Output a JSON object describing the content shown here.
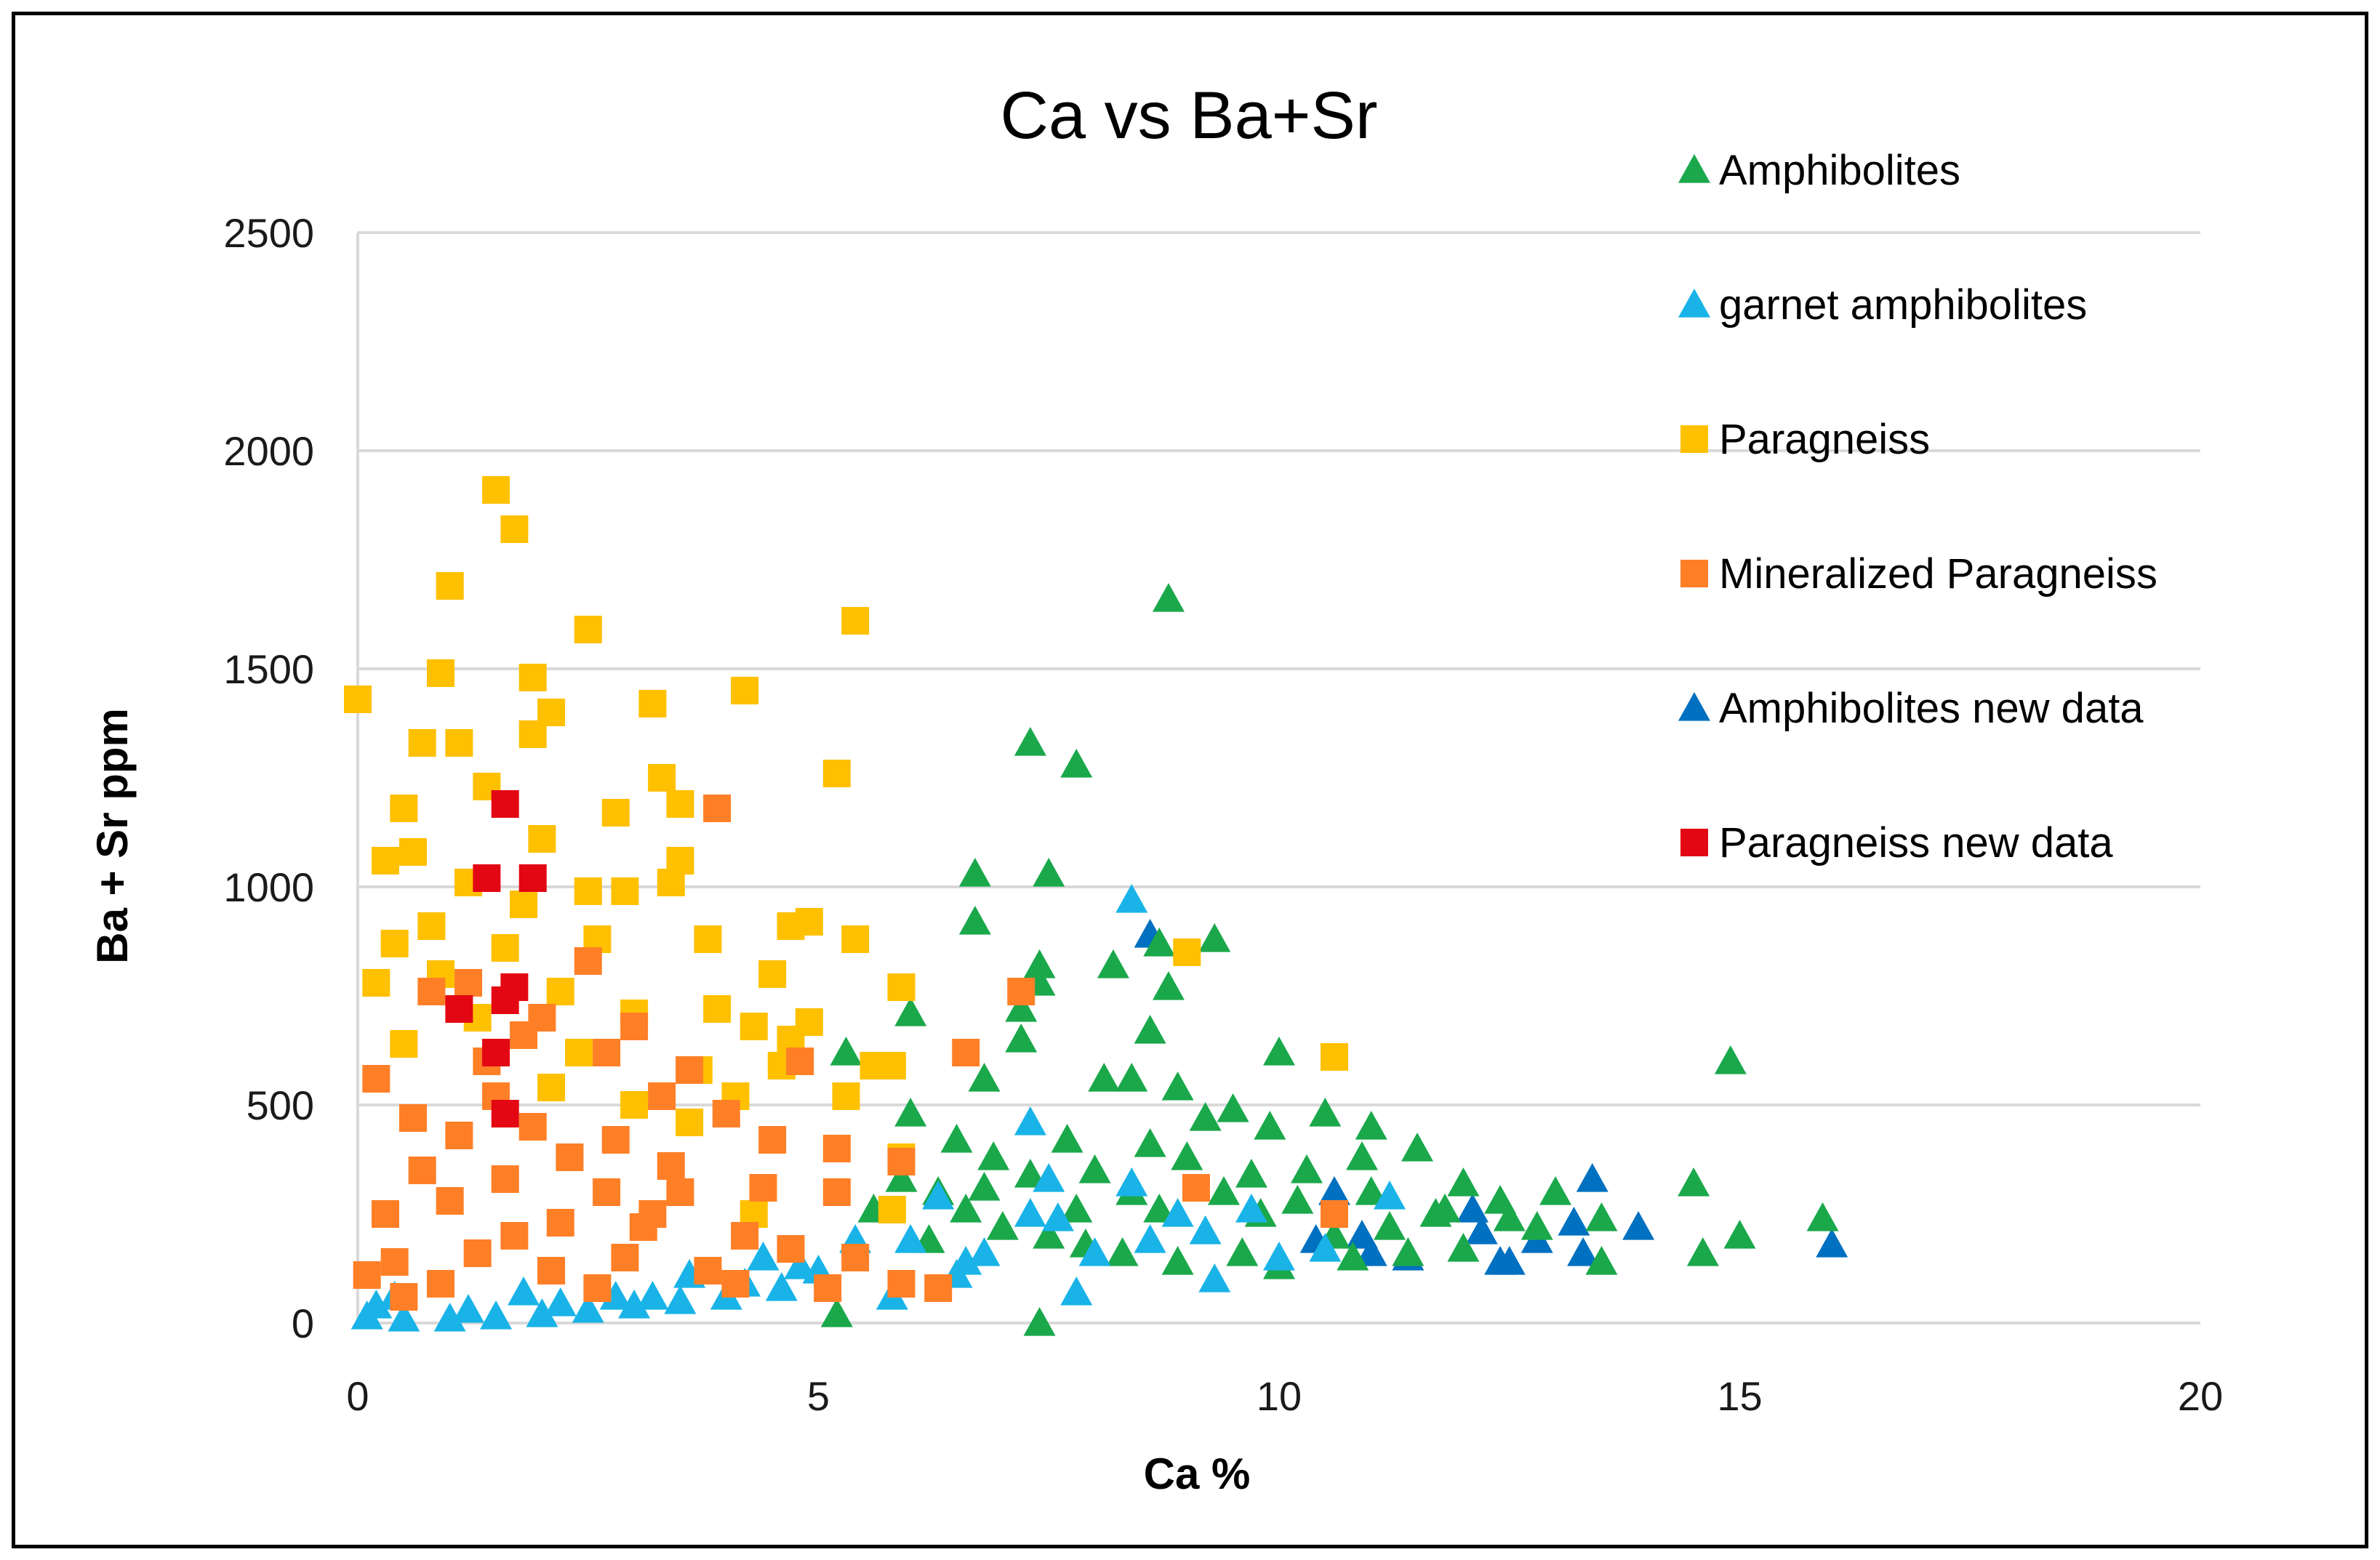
{
  "chart_data": {
    "type": "scatter",
    "title": "Ca vs Ba+Sr",
    "xlabel": "Ca %",
    "ylabel": "Ba + Sr ppm",
    "xlim": [
      0,
      20
    ],
    "ylim": [
      0,
      2500
    ],
    "x_ticks": [
      "0",
      "5",
      "10",
      "15",
      "20"
    ],
    "y_ticks": [
      "0",
      "500",
      "1000",
      "1500",
      "2000",
      "2500"
    ],
    "grid": "horizontal",
    "legend_position": "top-right",
    "series": [
      {
        "name": "Amphibolites",
        "marker": "triangle",
        "color": "#1aa84b",
        "points": [
          [
            8.8,
            1660
          ],
          [
            7.3,
            1330
          ],
          [
            7.8,
            1280
          ],
          [
            6.7,
            1030
          ],
          [
            7.5,
            1030
          ],
          [
            6.7,
            920
          ],
          [
            7.4,
            820
          ],
          [
            8.2,
            820
          ],
          [
            8.7,
            870
          ],
          [
            9.3,
            880
          ],
          [
            7.2,
            720
          ],
          [
            7.4,
            780
          ],
          [
            6.0,
            710
          ],
          [
            8.8,
            770
          ],
          [
            8.6,
            670
          ],
          [
            7.2,
            650
          ],
          [
            10.0,
            620
          ],
          [
            14.9,
            600
          ],
          [
            5.3,
            620
          ],
          [
            6.8,
            560
          ],
          [
            8.1,
            560
          ],
          [
            8.4,
            560
          ],
          [
            8.9,
            540
          ],
          [
            9.9,
            450
          ],
          [
            10.5,
            480
          ],
          [
            11.0,
            450
          ],
          [
            11.5,
            400
          ],
          [
            10.9,
            380
          ],
          [
            9.5,
            490
          ],
          [
            12.0,
            320
          ],
          [
            12.4,
            280
          ],
          [
            13.0,
            300
          ],
          [
            12.5,
            240
          ],
          [
            13.5,
            240
          ],
          [
            14.5,
            320
          ],
          [
            15.0,
            200
          ],
          [
            14.6,
            160
          ],
          [
            15.9,
            240
          ],
          [
            13.5,
            140
          ],
          [
            12.0,
            170
          ],
          [
            7.4,
            0
          ],
          [
            5.2,
            20
          ],
          [
            6.0,
            480
          ],
          [
            6.5,
            420
          ],
          [
            6.9,
            380
          ],
          [
            7.7,
            420
          ],
          [
            8.0,
            350
          ],
          [
            8.4,
            300
          ],
          [
            8.7,
            260
          ],
          [
            9.0,
            380
          ],
          [
            9.4,
            300
          ],
          [
            9.8,
            250
          ],
          [
            10.2,
            280
          ],
          [
            10.6,
            200
          ],
          [
            11.2,
            220
          ],
          [
            11.7,
            250
          ],
          [
            6.3,
            300
          ],
          [
            6.6,
            260
          ],
          [
            7.0,
            220
          ],
          [
            7.5,
            200
          ],
          [
            7.9,
            180
          ],
          [
            8.3,
            160
          ],
          [
            8.9,
            140
          ],
          [
            9.6,
            160
          ],
          [
            10.0,
            130
          ],
          [
            10.8,
            150
          ],
          [
            11.4,
            160
          ],
          [
            5.6,
            260
          ],
          [
            5.9,
            330
          ],
          [
            6.2,
            190
          ],
          [
            6.8,
            310
          ],
          [
            7.3,
            340
          ],
          [
            7.8,
            260
          ],
          [
            8.6,
            410
          ],
          [
            9.2,
            470
          ],
          [
            9.7,
            340
          ],
          [
            10.3,
            350
          ],
          [
            11.0,
            300
          ],
          [
            11.8,
            260
          ],
          [
            12.8,
            220
          ]
        ]
      },
      {
        "name": "garnet amphibolites",
        "marker": "triangle",
        "color": "#19b3e8",
        "points": [
          [
            8.4,
            970
          ],
          [
            7.3,
            460
          ],
          [
            8.4,
            320
          ],
          [
            7.5,
            330
          ],
          [
            7.3,
            250
          ],
          [
            7.6,
            240
          ],
          [
            6.8,
            160
          ],
          [
            7.8,
            70
          ],
          [
            6.5,
            110
          ],
          [
            8.9,
            250
          ],
          [
            9.2,
            210
          ],
          [
            9.3,
            100
          ],
          [
            10.0,
            150
          ],
          [
            10.5,
            170
          ],
          [
            11.2,
            290
          ],
          [
            5.4,
            190
          ],
          [
            5.0,
            120
          ],
          [
            4.6,
            80
          ],
          [
            4.0,
            60
          ],
          [
            3.5,
            50
          ],
          [
            3.0,
            40
          ],
          [
            2.5,
            30
          ],
          [
            2.0,
            20
          ],
          [
            1.5,
            15
          ],
          [
            1.0,
            10
          ],
          [
            0.5,
            10
          ],
          [
            0.1,
            15
          ],
          [
            0.2,
            40
          ],
          [
            1.2,
            30
          ],
          [
            2.2,
            45
          ],
          [
            3.2,
            60
          ],
          [
            4.2,
            90
          ],
          [
            4.8,
            130
          ],
          [
            5.8,
            60
          ],
          [
            6.0,
            190
          ],
          [
            6.3,
            290
          ],
          [
            6.6,
            140
          ],
          [
            8.0,
            160
          ],
          [
            8.6,
            190
          ],
          [
            9.7,
            260
          ],
          [
            0.4,
            60
          ],
          [
            1.8,
            70
          ],
          [
            2.8,
            60
          ],
          [
            3.6,
            110
          ],
          [
            4.4,
            150
          ]
        ]
      },
      {
        "name": "Paragneiss",
        "marker": "square",
        "color": "#ffc000",
        "points": [
          [
            1.5,
            1910
          ],
          [
            1.7,
            1820
          ],
          [
            1.0,
            1690
          ],
          [
            5.4,
            1610
          ],
          [
            2.5,
            1590
          ],
          [
            0.9,
            1490
          ],
          [
            1.9,
            1480
          ],
          [
            0.0,
            1430
          ],
          [
            3.2,
            1420
          ],
          [
            4.2,
            1450
          ],
          [
            2.1,
            1400
          ],
          [
            1.9,
            1350
          ],
          [
            1.1,
            1330
          ],
          [
            0.7,
            1330
          ],
          [
            5.2,
            1260
          ],
          [
            3.3,
            1250
          ],
          [
            1.4,
            1230
          ],
          [
            2.8,
            1170
          ],
          [
            3.5,
            1190
          ],
          [
            0.5,
            1180
          ],
          [
            0.3,
            1060
          ],
          [
            3.5,
            1060
          ],
          [
            3.4,
            1010
          ],
          [
            2.5,
            990
          ],
          [
            2.9,
            990
          ],
          [
            3.8,
            880
          ],
          [
            4.5,
            800
          ],
          [
            4.9,
            920
          ],
          [
            4.7,
            910
          ],
          [
            5.4,
            880
          ],
          [
            9.0,
            850
          ],
          [
            5.9,
            770
          ],
          [
            4.9,
            690
          ],
          [
            4.7,
            650
          ],
          [
            4.6,
            590
          ],
          [
            5.6,
            590
          ],
          [
            5.8,
            590
          ],
          [
            10.6,
            610
          ],
          [
            5.3,
            520
          ],
          [
            3.0,
            710
          ],
          [
            2.2,
            760
          ],
          [
            1.6,
            860
          ],
          [
            0.8,
            910
          ],
          [
            0.4,
            870
          ],
          [
            0.2,
            780
          ],
          [
            1.2,
            1010
          ],
          [
            2.0,
            1110
          ],
          [
            0.6,
            1080
          ],
          [
            3.9,
            720
          ],
          [
            4.3,
            680
          ],
          [
            2.6,
            880
          ],
          [
            1.8,
            960
          ],
          [
            0.9,
            800
          ],
          [
            3.7,
            580
          ],
          [
            4.1,
            520
          ],
          [
            2.4,
            620
          ],
          [
            1.3,
            700
          ],
          [
            0.5,
            640
          ],
          [
            5.9,
            380
          ],
          [
            4.3,
            250
          ],
          [
            5.8,
            260
          ],
          [
            3.0,
            500
          ],
          [
            3.6,
            460
          ],
          [
            2.1,
            540
          ]
        ]
      },
      {
        "name": "Mineralized Paragneiss",
        "marker": "square",
        "color": "#ff7f27",
        "points": [
          [
            3.9,
            1180
          ],
          [
            7.2,
            760
          ],
          [
            6.6,
            620
          ],
          [
            4.8,
            600
          ],
          [
            3.6,
            580
          ],
          [
            3.0,
            680
          ],
          [
            2.5,
            830
          ],
          [
            1.2,
            780
          ],
          [
            0.8,
            760
          ],
          [
            0.2,
            560
          ],
          [
            1.8,
            660
          ],
          [
            2.7,
            620
          ],
          [
            3.3,
            520
          ],
          [
            4.0,
            480
          ],
          [
            4.5,
            420
          ],
          [
            5.2,
            400
          ],
          [
            5.2,
            300
          ],
          [
            5.9,
            370
          ],
          [
            9.1,
            310
          ],
          [
            10.6,
            250
          ],
          [
            4.7,
            170
          ],
          [
            5.4,
            150
          ],
          [
            5.9,
            90
          ],
          [
            6.3,
            80
          ],
          [
            5.1,
            80
          ],
          [
            3.8,
            120
          ],
          [
            4.2,
            200
          ],
          [
            4.1,
            90
          ],
          [
            3.5,
            300
          ],
          [
            3.2,
            250
          ],
          [
            2.9,
            150
          ],
          [
            2.6,
            80
          ],
          [
            2.1,
            120
          ],
          [
            1.7,
            200
          ],
          [
            1.3,
            160
          ],
          [
            0.9,
            90
          ],
          [
            0.5,
            60
          ],
          [
            0.1,
            110
          ],
          [
            0.3,
            250
          ],
          [
            0.7,
            350
          ],
          [
            1.1,
            430
          ],
          [
            1.5,
            520
          ],
          [
            1.9,
            450
          ],
          [
            2.3,
            380
          ],
          [
            2.7,
            300
          ],
          [
            3.1,
            220
          ],
          [
            0.4,
            140
          ],
          [
            1.0,
            280
          ],
          [
            1.6,
            330
          ],
          [
            2.2,
            230
          ],
          [
            2.8,
            420
          ],
          [
            3.4,
            360
          ],
          [
            4.4,
            310
          ],
          [
            0.6,
            470
          ],
          [
            1.4,
            600
          ],
          [
            2.0,
            700
          ]
        ]
      },
      {
        "name": "Amphibolites new data",
        "marker": "triangle",
        "color": "#0070c0",
        "points": [
          [
            8.6,
            890
          ],
          [
            13.4,
            330
          ],
          [
            13.9,
            220
          ],
          [
            16.0,
            180
          ],
          [
            12.4,
            140
          ],
          [
            12.5,
            140
          ],
          [
            13.3,
            160
          ],
          [
            12.1,
            260
          ],
          [
            11.4,
            150
          ],
          [
            11.0,
            160
          ],
          [
            10.9,
            200
          ],
          [
            10.4,
            190
          ],
          [
            10.6,
            300
          ],
          [
            12.8,
            190
          ],
          [
            13.2,
            230
          ],
          [
            12.2,
            210
          ]
        ]
      },
      {
        "name": "Paragneiss new data",
        "marker": "square",
        "color": "#e30613",
        "points": [
          [
            1.6,
            1190
          ],
          [
            1.4,
            1020
          ],
          [
            1.9,
            1020
          ],
          [
            1.7,
            770
          ],
          [
            1.6,
            740
          ],
          [
            1.1,
            720
          ],
          [
            1.5,
            620
          ],
          [
            1.6,
            480
          ]
        ]
      }
    ]
  }
}
